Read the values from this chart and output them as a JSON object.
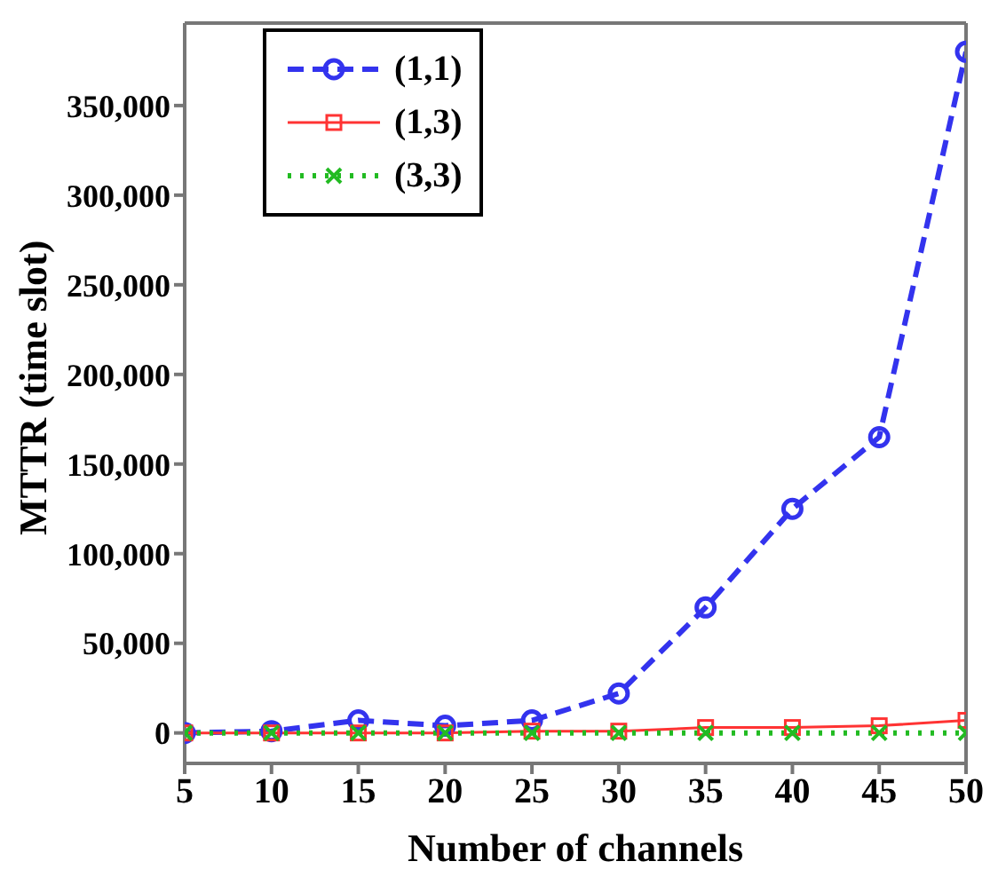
{
  "chart_data": {
    "type": "line",
    "xlabel": "Number of channels",
    "ylabel": "MTTR (time slot)",
    "x": [
      5,
      10,
      15,
      20,
      25,
      30,
      35,
      40,
      45,
      50
    ],
    "series": [
      {
        "name": "(1,1)",
        "color": "#3333ee",
        "line_style": "dashed",
        "marker": "circle",
        "values": [
          0,
          1000,
          7000,
          4000,
          7000,
          22000,
          70000,
          125000,
          165000,
          380000
        ]
      },
      {
        "name": "(1,3)",
        "color": "#ff3333",
        "line_style": "solid",
        "marker": "square",
        "values": [
          0,
          0,
          0,
          0,
          1000,
          1000,
          3000,
          3000,
          4000,
          7000
        ]
      },
      {
        "name": "(3,3)",
        "color": "#22bb22",
        "line_style": "dotted",
        "marker": "cross",
        "values": [
          0,
          0,
          0,
          0,
          0,
          0,
          0,
          0,
          0,
          0
        ]
      }
    ],
    "xlim": [
      5,
      50
    ],
    "xticks": [
      5,
      10,
      15,
      20,
      25,
      30,
      35,
      40,
      45,
      50
    ],
    "ylim": [
      -17000,
      396000
    ],
    "yticks": [
      0,
      {
        "value": 50000,
        "label": "50,000"
      },
      {
        "value": 100000,
        "label": "100,000"
      },
      {
        "value": 150000,
        "label": "150,000"
      },
      {
        "value": 200000,
        "label": "200,000"
      },
      {
        "value": 250000,
        "label": "250,000"
      },
      {
        "value": 300000,
        "label": "300,000"
      },
      {
        "value": 350000,
        "label": "350,000"
      }
    ],
    "grid": false,
    "legend": "top left"
  }
}
